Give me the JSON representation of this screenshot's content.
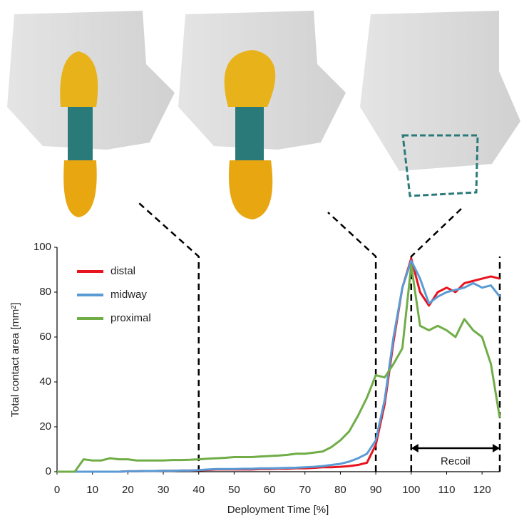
{
  "chart_data": {
    "type": "line",
    "x_label": "Deployment Time [%]",
    "y_label": "Total contact area [mm²]",
    "x": [
      0,
      2.5,
      5,
      7.5,
      10,
      12.5,
      15,
      17.5,
      20,
      22.5,
      25,
      27.5,
      30,
      32.5,
      35,
      37.5,
      40,
      42.5,
      45,
      47.5,
      50,
      52.5,
      55,
      57.5,
      60,
      62.5,
      65,
      67.5,
      70,
      72.5,
      75,
      77.5,
      80,
      82.5,
      85,
      87.5,
      90,
      92.5,
      95,
      97.5,
      100,
      102.5,
      105,
      107.5,
      110,
      112.5,
      115,
      117.5,
      120,
      122.5,
      125
    ],
    "series": [
      {
        "name": "distal",
        "color": "#e8141e",
        "values": [
          0,
          0,
          0,
          0,
          0,
          0,
          0,
          0,
          0.2,
          0.2,
          0.3,
          0.3,
          0.4,
          0.4,
          0.5,
          0.5,
          0.6,
          0.8,
          1,
          1,
          1,
          1,
          1,
          1.2,
          1.2,
          1.3,
          1.3,
          1.5,
          1.5,
          1.7,
          2,
          2,
          2.2,
          2.5,
          3,
          4,
          12,
          30,
          58,
          82,
          95,
          80,
          74,
          80,
          82,
          80,
          84,
          85,
          86,
          87,
          86
        ]
      },
      {
        "name": "midway",
        "color": "#5b9bd5",
        "values": [
          0,
          0,
          0,
          0,
          0,
          0,
          0,
          0,
          0.2,
          0.2,
          0.3,
          0.3,
          0.4,
          0.4,
          0.5,
          0.5,
          0.7,
          1,
          1.2,
          1.2,
          1.2,
          1.3,
          1.3,
          1.5,
          1.5,
          1.6,
          1.7,
          1.8,
          2,
          2.2,
          2.5,
          3,
          3.5,
          4.5,
          6,
          8,
          14,
          32,
          60,
          82,
          94,
          86,
          75,
          78,
          80,
          81,
          82,
          84,
          82,
          83,
          78
        ]
      },
      {
        "name": "proximal",
        "color": "#70ad47",
        "values": [
          0,
          0,
          0,
          5.5,
          5,
          5,
          6,
          5.5,
          5.5,
          5,
          5,
          5,
          5,
          5.2,
          5.2,
          5.3,
          5.5,
          5.8,
          6,
          6.2,
          6.5,
          6.5,
          6.5,
          6.8,
          7,
          7.2,
          7.5,
          8,
          8,
          8.5,
          9,
          11,
          14,
          18,
          25,
          33,
          43,
          42,
          48,
          55,
          92,
          65,
          63,
          65,
          63,
          60,
          68,
          63,
          60,
          48,
          24
        ]
      }
    ],
    "xlim": [
      0,
      125
    ],
    "ylim": [
      0,
      100
    ],
    "xticks": [
      0,
      10,
      20,
      30,
      40,
      50,
      60,
      70,
      80,
      90,
      100,
      110,
      120
    ],
    "yticks": [
      0,
      20,
      40,
      60,
      80,
      100
    ],
    "vlines": [
      40,
      90,
      100,
      125
    ],
    "annotation": "Recoil",
    "legend": "top-left"
  }
}
